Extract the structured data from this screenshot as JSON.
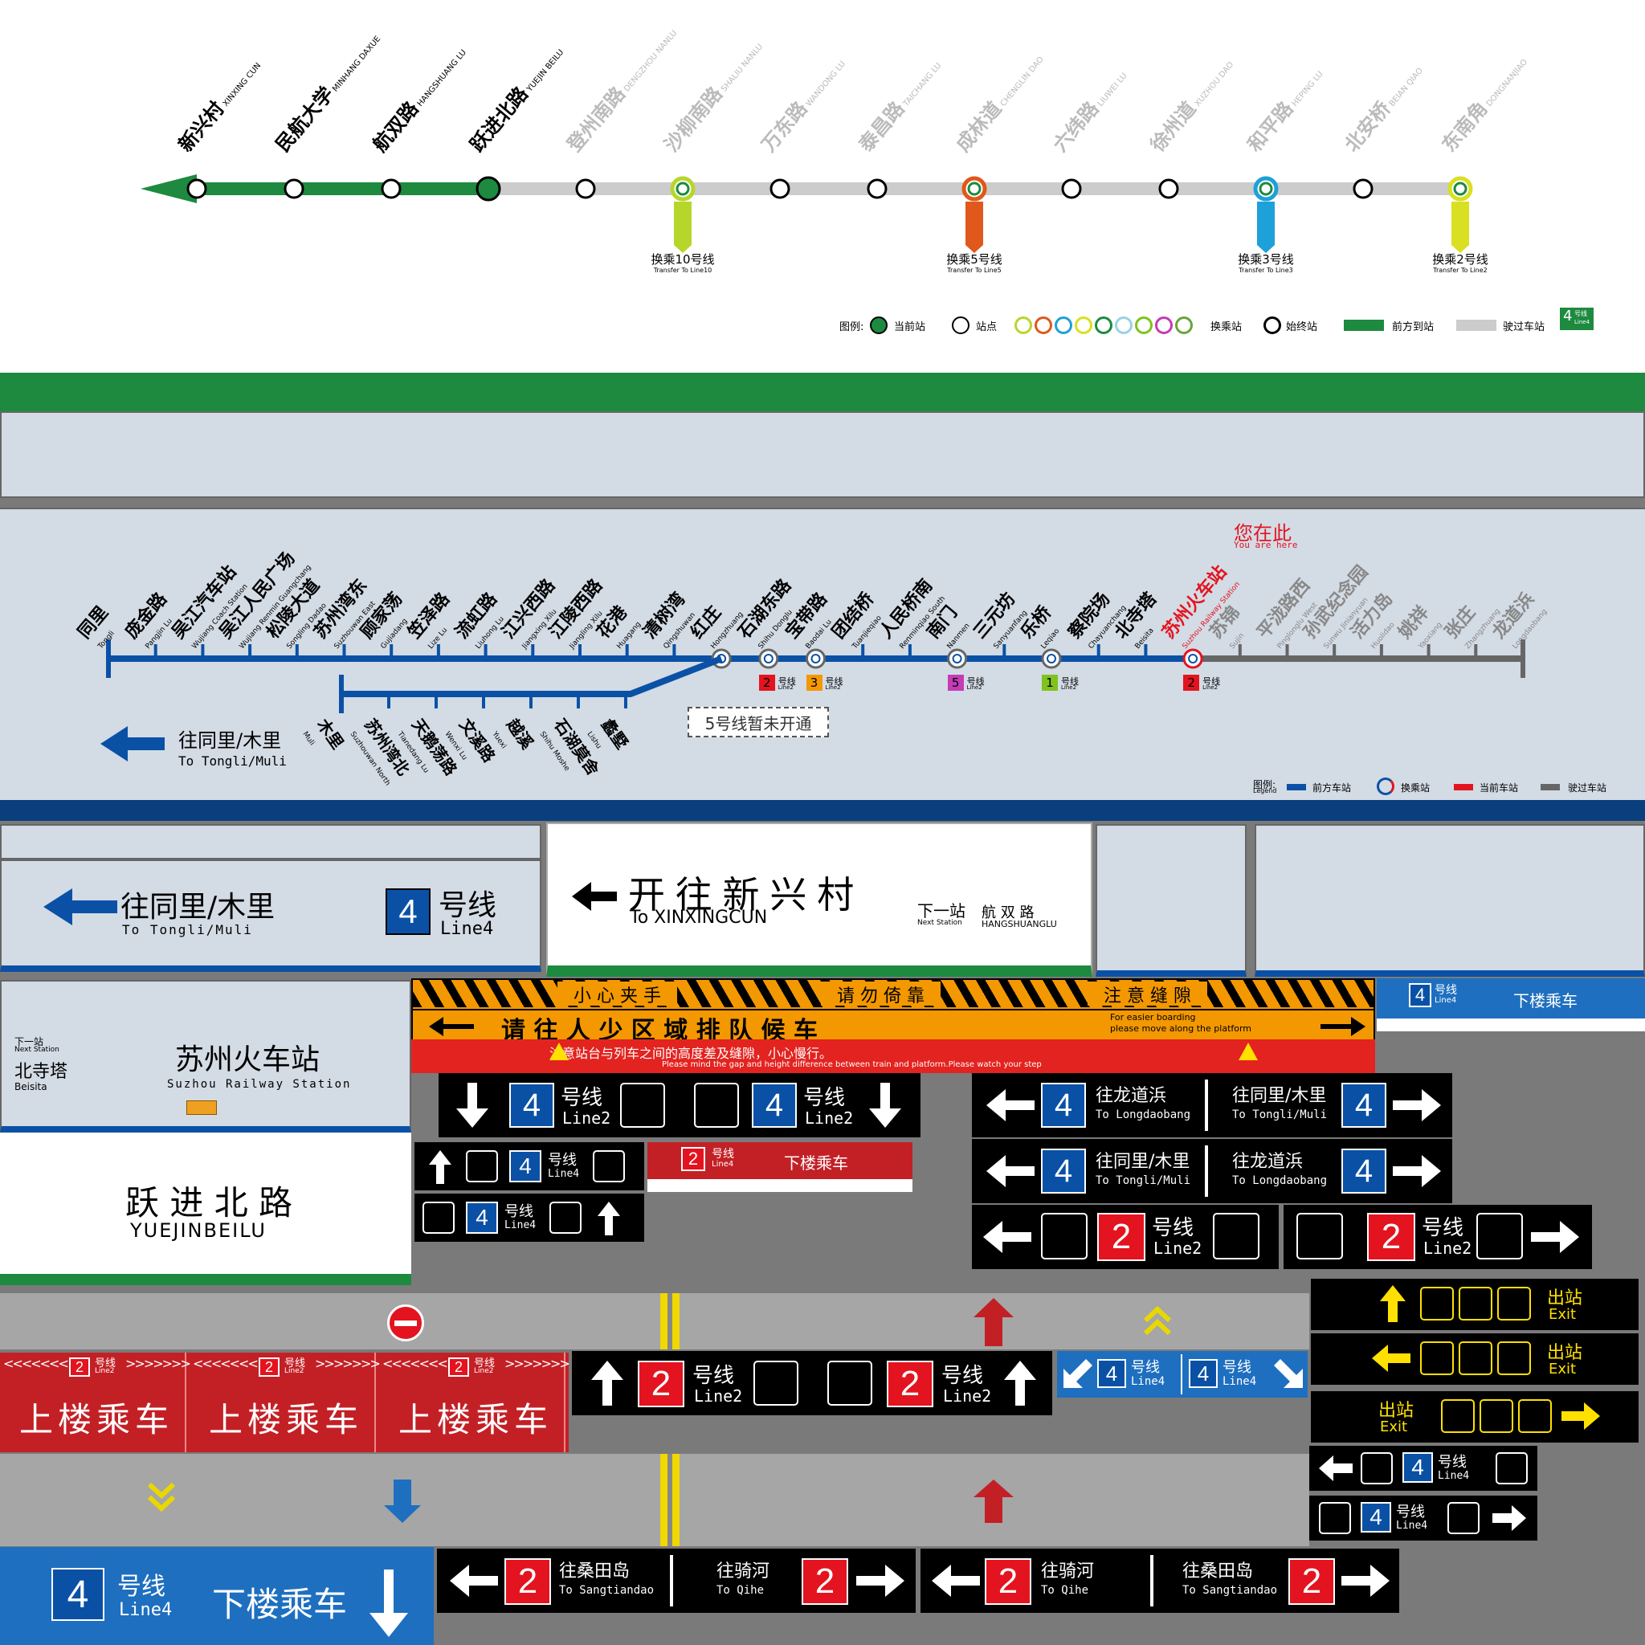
{
  "top_map": {
    "stations": [
      {
        "cn": "新兴村",
        "en": "XINXING CUN"
      },
      {
        "cn": "民航大学",
        "en": "MINHANG DAXUE"
      },
      {
        "cn": "航双路",
        "en": "HANGSHUANG LU"
      },
      {
        "cn": "跃进北路",
        "en": "YUEJIN BEILU"
      },
      {
        "cn": "登州南路",
        "en": "DENGZHOU NANLU"
      },
      {
        "cn": "沙柳南路",
        "en": "SHALIU NANLU"
      },
      {
        "cn": "万东路",
        "en": "WANDONG LU"
      },
      {
        "cn": "泰昌路",
        "en": "TAICHANG LU"
      },
      {
        "cn": "成林道",
        "en": "CHENGLIN DAO"
      },
      {
        "cn": "六纬路",
        "en": "LIUWEI LU"
      },
      {
        "cn": "徐州道",
        "en": "XUZHOU DAO"
      },
      {
        "cn": "和平路",
        "en": "HEPING LU"
      },
      {
        "cn": "北安桥",
        "en": "BEIAN QIAO"
      },
      {
        "cn": "东南角",
        "en": "DONGNANJIAO"
      }
    ],
    "transfers": [
      {
        "cn": "换乘10号线",
        "en": "Transfer To Line10",
        "color": "#b7d62b"
      },
      {
        "cn": "换乘5号线",
        "en": "Transfer To Line5",
        "color": "#e0581b"
      },
      {
        "cn": "换乘3号线",
        "en": "Transfer To Line3",
        "color": "#1ea0d8"
      },
      {
        "cn": "换乘2号线",
        "en": "Transfer To Line2",
        "color": "#d9e021"
      }
    ],
    "legend": {
      "label": "图例:",
      "current": "当前站",
      "station": "站点",
      "transfer": "换乘站",
      "terminal": "始终站",
      "ahead": "前方到站",
      "passed": "驶过车站",
      "line_badge": "4",
      "line_badge_cn": "号线",
      "line_badge_en": "Line4"
    },
    "colors": {
      "active": "#1d8a3f",
      "passed": "#cccccc"
    }
  },
  "platform_map": {
    "you_are_here_cn": "您在此",
    "you_are_here_en": "You are here",
    "stations": [
      {
        "cn": "同里",
        "en": "Tongli"
      },
      {
        "cn": "庞金路",
        "en": "Pangjin Lu"
      },
      {
        "cn": "吴江汽车站",
        "en": "Wujiang Coach Station"
      },
      {
        "cn": "吴江人民广场",
        "en": "Wujiang Renmin Guangchang"
      },
      {
        "cn": "松陵大道",
        "en": "Songling Dadao"
      },
      {
        "cn": "苏州湾东",
        "en": "Suzhouwan East"
      },
      {
        "cn": "顾家荡",
        "en": "Gujiadang"
      },
      {
        "cn": "笠泽路",
        "en": "Lize Lu"
      },
      {
        "cn": "流虹路",
        "en": "Liuhong Lu"
      },
      {
        "cn": "江兴西路",
        "en": "Jiangxing Xilu"
      },
      {
        "cn": "江陵西路",
        "en": "Jiangling Xilu"
      },
      {
        "cn": "花港",
        "en": "Huagang"
      },
      {
        "cn": "清树湾",
        "en": "Qingshuwan"
      },
      {
        "cn": "红庄",
        "en": "Hongzhuang"
      },
      {
        "cn": "石湖东路",
        "en": "Shihu Donglu"
      },
      {
        "cn": "宝带路",
        "en": "Baodai Lu"
      },
      {
        "cn": "团结桥",
        "en": "Tuanjieqiao"
      },
      {
        "cn": "人民桥南",
        "en": "Renminqiao South"
      },
      {
        "cn": "南门",
        "en": "Nanmen"
      },
      {
        "cn": "三元坊",
        "en": "Sanyuanfang"
      },
      {
        "cn": "乐桥",
        "en": "Leqiao"
      },
      {
        "cn": "察院场",
        "en": "Chayuanchang"
      },
      {
        "cn": "北寺塔",
        "en": "Beisita"
      },
      {
        "cn": "苏州火车站",
        "en": "Suzhou Railway Station"
      },
      {
        "cn": "苏锦",
        "en": "Sujin"
      },
      {
        "cn": "平泷路西",
        "en": "Pinglonglu West"
      },
      {
        "cn": "孙武纪念园",
        "en": "Sunwu Jinianyuan"
      },
      {
        "cn": "活力岛",
        "en": "Huolidao"
      },
      {
        "cn": "姚祥",
        "en": "Yaoxiang"
      },
      {
        "cn": "张庄",
        "en": "Zhangzhuang"
      },
      {
        "cn": "龙道浜",
        "en": "Longdaobang"
      }
    ],
    "branch": [
      {
        "cn": "木里",
        "en": "Muli"
      },
      {
        "cn": "苏州湾北",
        "en": "Suzhouwan North"
      },
      {
        "cn": "天鹅荡路",
        "en": "Tianedang Lu"
      },
      {
        "cn": "文溪路",
        "en": "Wenxi Lu"
      },
      {
        "cn": "越溪",
        "en": "Yuexi"
      },
      {
        "cn": "石湖莫舍",
        "en": "Shihu Moshe"
      },
      {
        "cn": "蠡墅",
        "en": "Lishu"
      }
    ],
    "transfer_badges": [
      {
        "num": "2",
        "cn": "号线",
        "en": "Line2",
        "color": "#e3141f"
      },
      {
        "num": "3",
        "cn": "号线",
        "en": "Line2",
        "color": "#f39800"
      },
      {
        "num": "5",
        "cn": "号线",
        "en": "Line2",
        "color": "#c53bb5"
      },
      {
        "num": "1",
        "cn": "号线",
        "en": "Line2",
        "color": "#7fc31c"
      },
      {
        "num": "2",
        "cn": "号线",
        "en": "Line2",
        "color": "#e3141f"
      }
    ],
    "note": "5号线暂未开通",
    "direction_cn": "往同里/木里",
    "direction_en": "To Tongli/Muli",
    "legend": {
      "label": "图例:",
      "label_en": "Legend",
      "ahead": "前方车站",
      "transfer": "换乘站",
      "current": "当前车站",
      "passed": "驶过车站"
    }
  },
  "platform_signs": {
    "dir_cn": "往同里/木里",
    "dir_en": "To Tongli/Muli",
    "line_num": "4",
    "line_cn": "号线",
    "line_en": "Line4",
    "train_cn": "开 往 新 兴 村",
    "train_en": "To XINXINGCUN",
    "next_label_cn": "下一站",
    "next_label_en": "Next Station",
    "next_cn": "航 双 路",
    "next_en": "HANGSHUANGLU"
  },
  "station_board": {
    "next_label_cn": "下一站",
    "next_label_en": "Next Station",
    "next_cn": "北寺塔",
    "next_en": "Beisita",
    "name_cn": "苏州火车站",
    "name_en": "Suzhou Railway Station"
  },
  "station_name_board": {
    "cn": "跃 进 北 路",
    "en": "YUEJINBEILU"
  },
  "warning_strip": {
    "top": [
      "小 心 夹 手",
      "请 勿 倚 靠",
      "注 意 缝 隙"
    ],
    "main_cn": "请 往 人 少 区 域 排 队 候 车",
    "main_en1": "For easier boarding",
    "main_en2": "please move along the platform",
    "red_cn": "注意站台与列车之间的高度差及缝隙，小心慢行。",
    "red_en": "Please mind the gap and height difference between train and platform.Please watch your step"
  },
  "signs": {
    "line2_cn": "号线",
    "line2_en": "Line2",
    "line4_en": "Line4",
    "down_cn": "下楼乘车",
    "up_cn": "上楼乘车",
    "to_longdaobang_cn": "往龙道浜",
    "to_longdaobang_en": "To Longdaobang",
    "to_tongli_cn": "往同里/木里",
    "to_tongli_en": "To Tongli/Muli",
    "to_sangtiandao_cn": "往桑田岛",
    "to_sangtiandao_en": "To Sangtiandao",
    "to_qihe_cn": "往骑河",
    "to_qihe_en": "To Qihe",
    "exit_cn": "出站",
    "exit_en": "Exit",
    "n2": "2",
    "n4": "4"
  }
}
